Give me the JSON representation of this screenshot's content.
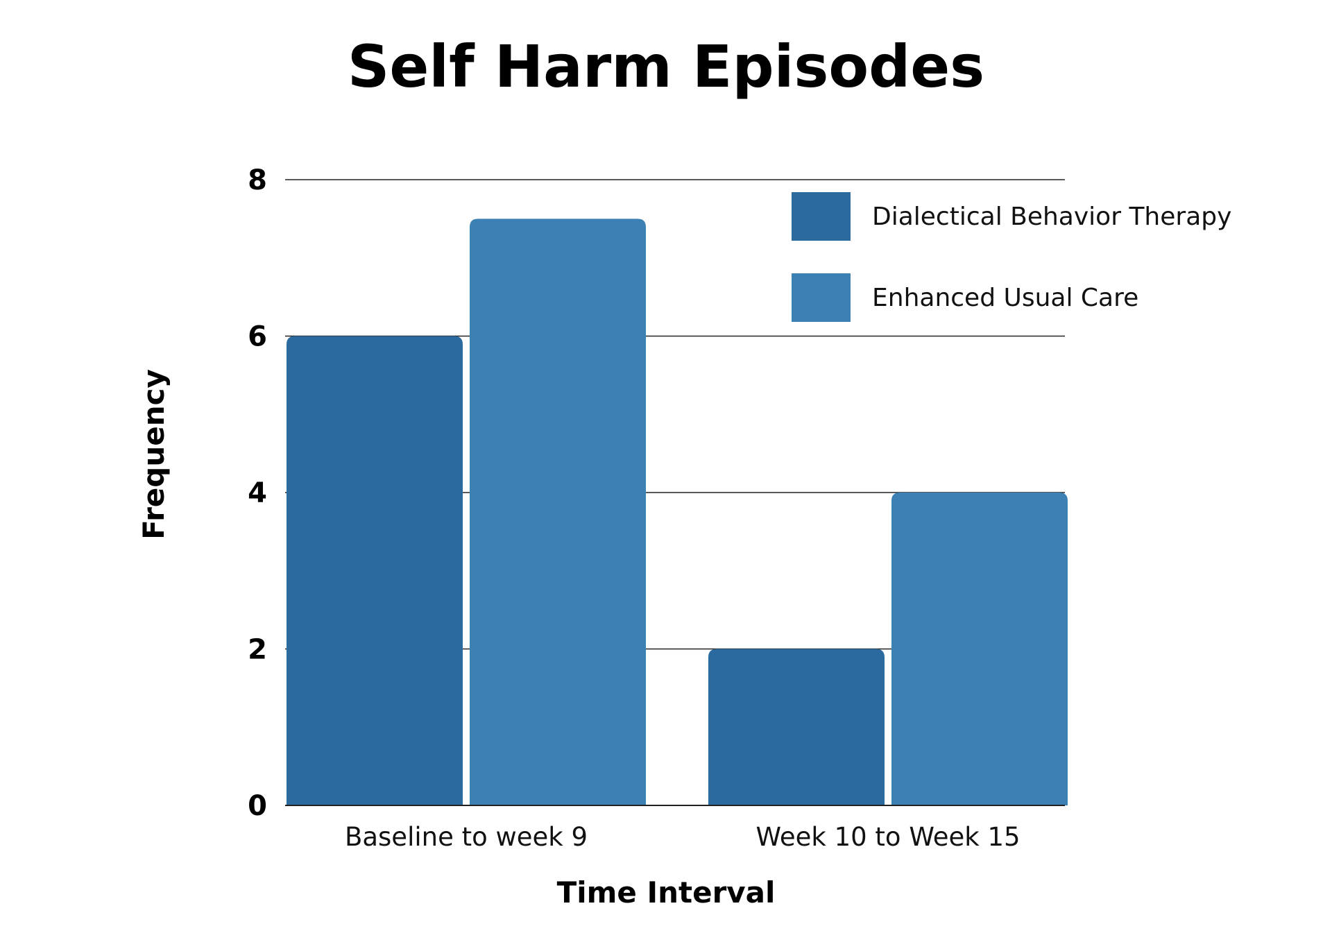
{
  "chart_data": {
    "type": "bar",
    "title": "Self Harm Episodes",
    "xlabel": "Time Interval",
    "ylabel": "Frequency",
    "ylim": [
      0,
      8
    ],
    "yticks": [
      "0",
      "2",
      "4",
      "6",
      "8"
    ],
    "categories": [
      "Baseline to week 9",
      "Week 10 to Week 15"
    ],
    "series": [
      {
        "name": "Dialectical Behavior Therapy",
        "values": [
          6,
          2
        ],
        "color": "#2a6a9e"
      },
      {
        "name": "Enhanced Usual Care",
        "values": [
          7.5,
          4
        ],
        "color": "#3c81b3"
      }
    ],
    "grid": true,
    "legend_position": "top-right"
  }
}
